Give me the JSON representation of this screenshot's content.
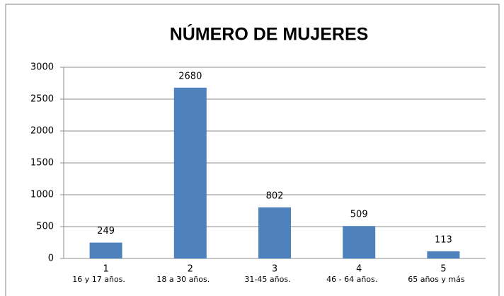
{
  "chart_data": {
    "type": "bar",
    "title": "NÚMERO DE MUJERES",
    "categories": [
      [
        "1",
        "16 y 17 años."
      ],
      [
        "2",
        "18 a 30 años."
      ],
      [
        "3",
        "31-45 años."
      ],
      [
        "4",
        "46 - 64 años."
      ],
      [
        "5",
        "65 años y más"
      ]
    ],
    "values": [
      249,
      2680,
      802,
      509,
      113
    ],
    "color": "#4f81bd",
    "ylim": [
      0,
      3000
    ],
    "yticks": [
      0,
      500,
      1000,
      1500,
      2000,
      2500,
      3000
    ],
    "grid": true
  }
}
